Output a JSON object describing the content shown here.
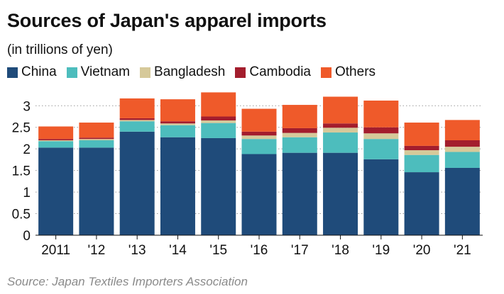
{
  "header": {
    "title": "Sources of Japan's apparel imports",
    "subtitle": "(in trillions of yen)"
  },
  "source": "Source: Japan Textiles Importers Association",
  "colors": {
    "China": "#1f4b7a",
    "Vietnam": "#4dbdbd",
    "Bangladesh": "#d6c99a",
    "Cambodia": "#a31d2d",
    "Others": "#ef5a2a"
  },
  "chart_data": {
    "type": "bar",
    "stacked": true,
    "categories": [
      "2011",
      "'12",
      "'13",
      "'14",
      "'15",
      "'16",
      "'17",
      "'18",
      "'19",
      "'20",
      "'21"
    ],
    "series": [
      {
        "name": "China",
        "values": [
          2.03,
          2.03,
          2.4,
          2.27,
          2.25,
          1.88,
          1.91,
          1.91,
          1.76,
          1.46,
          1.56
        ]
      },
      {
        "name": "Vietnam",
        "values": [
          0.15,
          0.17,
          0.24,
          0.28,
          0.35,
          0.35,
          0.36,
          0.47,
          0.47,
          0.4,
          0.37
        ]
      },
      {
        "name": "Bangladesh",
        "values": [
          0.02,
          0.03,
          0.03,
          0.04,
          0.06,
          0.08,
          0.1,
          0.11,
          0.13,
          0.11,
          0.12
        ]
      },
      {
        "name": "Cambodia",
        "values": [
          0.03,
          0.03,
          0.04,
          0.05,
          0.09,
          0.09,
          0.11,
          0.1,
          0.14,
          0.1,
          0.15
        ]
      },
      {
        "name": "Others",
        "values": [
          0.29,
          0.35,
          0.46,
          0.51,
          0.56,
          0.53,
          0.54,
          0.62,
          0.62,
          0.54,
          0.47
        ]
      }
    ],
    "yticks": [
      "0",
      "0.5",
      "1",
      "1.5",
      "2",
      "2.5",
      "3"
    ],
    "ylim": [
      0,
      3.3
    ],
    "grid": true,
    "legend_position": "top"
  }
}
